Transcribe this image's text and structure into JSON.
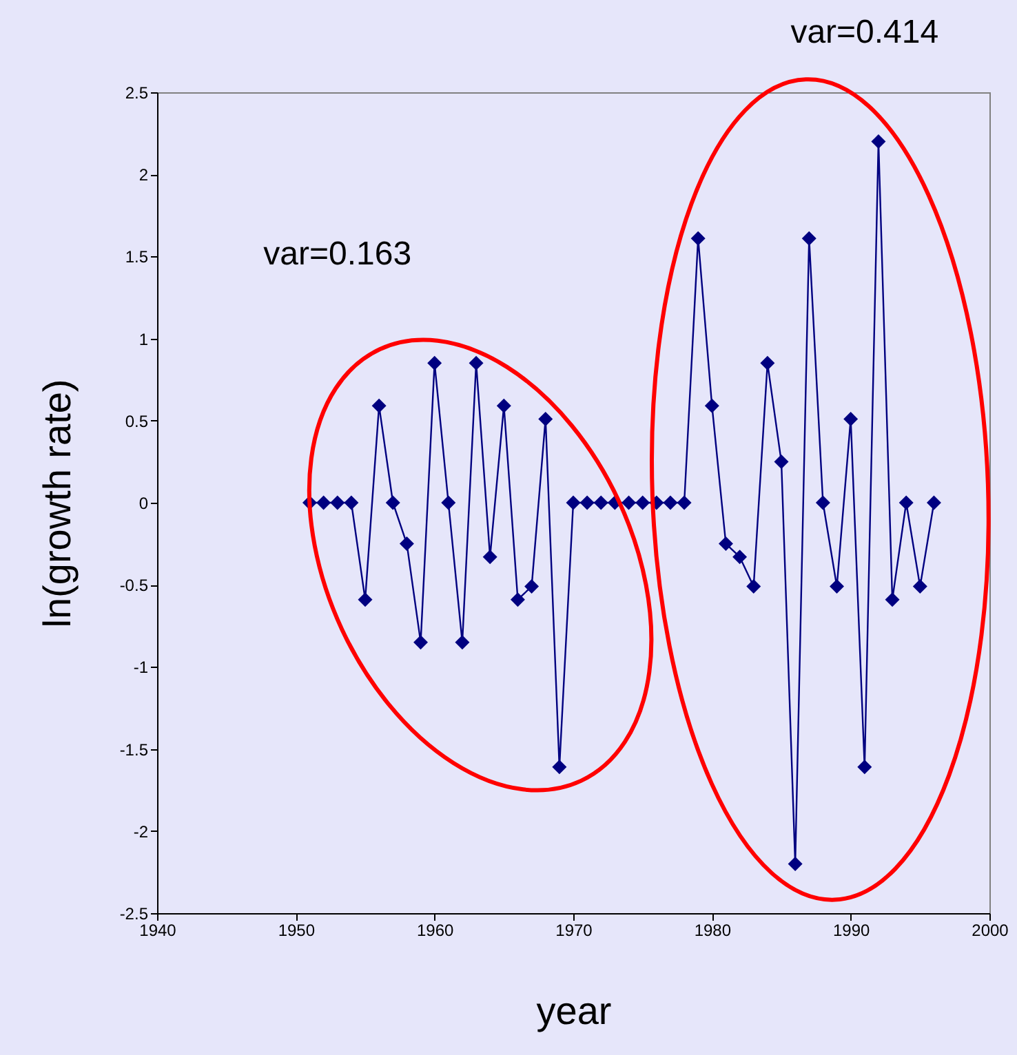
{
  "chart_data": {
    "type": "line",
    "xlabel": "year",
    "ylabel": "ln(growth rate)",
    "x": [
      1951,
      1952,
      1953,
      1954,
      1955,
      1956,
      1957,
      1958,
      1959,
      1960,
      1961,
      1962,
      1963,
      1964,
      1965,
      1966,
      1967,
      1968,
      1969,
      1970,
      1971,
      1972,
      1973,
      1974,
      1975,
      1976,
      1977,
      1978,
      1979,
      1980,
      1981,
      1982,
      1983,
      1984,
      1985,
      1986,
      1987,
      1988,
      1989,
      1990,
      1991,
      1992,
      1993,
      1994,
      1995,
      1996
    ],
    "series": [
      {
        "color": "#000080",
        "values": [
          0,
          0,
          0,
          0,
          -0.59,
          0.59,
          0,
          -0.25,
          -0.85,
          0.85,
          0,
          -0.85,
          0.85,
          -0.33,
          0.59,
          -0.59,
          -0.51,
          0.51,
          -1.61,
          0,
          0,
          0,
          0,
          0,
          0,
          0,
          0,
          0,
          1.61,
          0.59,
          -0.25,
          -0.33,
          -0.51,
          0.85,
          0.25,
          -2.2,
          1.61,
          0,
          -0.51,
          0.51,
          -1.61,
          2.2,
          -0.59,
          0,
          -0.51,
          0
        ]
      }
    ],
    "xlim": [
      1940,
      2000
    ],
    "xticks": [
      1940,
      1950,
      1960,
      1970,
      1980,
      1990,
      2000
    ],
    "ylim": [
      -2.5,
      2.5
    ],
    "yticks": [
      -2.5,
      -2,
      -1.5,
      -1,
      -0.5,
      0,
      0.5,
      1,
      1.5,
      2,
      2.5
    ],
    "marker": "diamond",
    "grid": false,
    "annotations": [
      "var=0.163",
      "var=0.414"
    ]
  }
}
